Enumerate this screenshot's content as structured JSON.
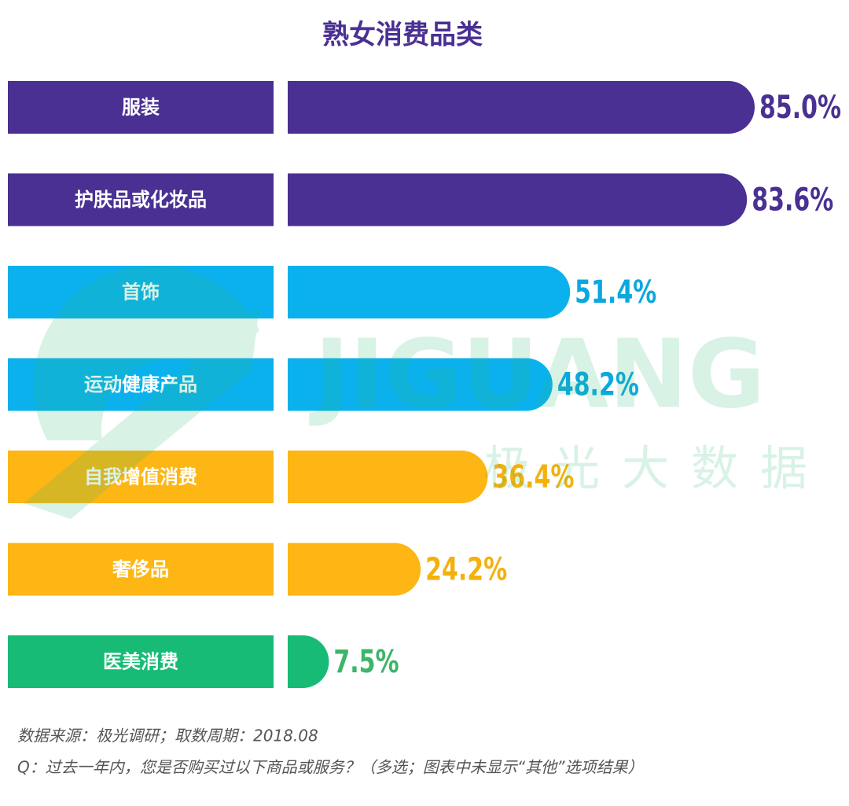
{
  "chart_data": {
    "type": "bar",
    "orientation": "horizontal",
    "title": "熟女消费品类",
    "categories": [
      "服装",
      "护肤品或化妆品",
      "首饰",
      "运动健康产品",
      "自我增值消费",
      "奢侈品",
      "医美消费"
    ],
    "values": [
      85.0,
      83.6,
      51.4,
      48.2,
      36.4,
      24.2,
      7.5
    ],
    "value_labels": [
      "85.0%",
      "83.6%",
      "51.4%",
      "48.2%",
      "36.4%",
      "24.2%",
      "7.5%"
    ],
    "colors": [
      "#4a3093",
      "#4a3093",
      "#0bb1ec",
      "#0bb1ec",
      "#fdb614",
      "#fdb614",
      "#17bb76"
    ],
    "label_colors": [
      "#4a3093",
      "#4a3093",
      "#0aa8e0",
      "#0aa8e0",
      "#f4b10d",
      "#f4b10d",
      "#3db56a"
    ],
    "watermark": [
      "JIGUANG",
      "极光大数据"
    ],
    "notes": [
      "数据来源：极光调研；取数周期：2018.08",
      "Q：过去一年内，您是否购买过以下商品或服务？（多选；图表中未显示“其他”选项结果）"
    ]
  }
}
